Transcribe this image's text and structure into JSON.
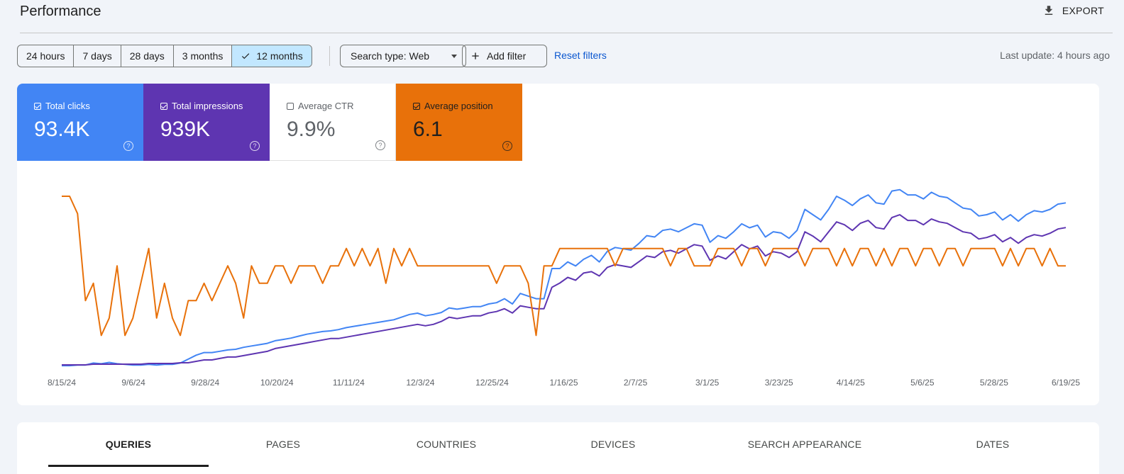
{
  "header": {
    "title": "Performance",
    "export_label": "EXPORT"
  },
  "toolbar": {
    "ranges": [
      "24 hours",
      "7 days",
      "28 days",
      "3 months",
      "12 months"
    ],
    "selected_range": "12 months",
    "search_type": "Search type: Web",
    "add_filter": "Add filter",
    "reset_filters": "Reset filters",
    "last_update": "Last update: 4 hours ago"
  },
  "metrics": {
    "clicks": {
      "label": "Total clicks",
      "value": "93.4K",
      "checked": true,
      "color": "#4285f4"
    },
    "impressions": {
      "label": "Total impressions",
      "value": "939K",
      "checked": true,
      "color": "#5e35b1"
    },
    "ctr": {
      "label": "Average CTR",
      "value": "9.9%",
      "checked": false
    },
    "position": {
      "label": "Average position",
      "value": "6.1",
      "checked": true,
      "color": "#e8710a"
    },
    "help_glyph": "?"
  },
  "chart_data": {
    "type": "line",
    "x_tick_labels": [
      "8/15/24",
      "9/6/24",
      "9/28/24",
      "10/20/24",
      "11/11/24",
      "12/3/24",
      "12/25/24",
      "1/16/25",
      "2/7/25",
      "3/1/25",
      "3/23/25",
      "4/14/25",
      "5/6/25",
      "5/28/25",
      "6/19/25"
    ],
    "x_range": [
      "8/15/24",
      "6/19/25"
    ],
    "series": [
      {
        "key": "clicks",
        "color": "#4285f4",
        "values": [
          2,
          2,
          3,
          3,
          6,
          5,
          7,
          5,
          4,
          3,
          3,
          4,
          3,
          4,
          4,
          6,
          12,
          18,
          22,
          22,
          24,
          26,
          27,
          30,
          32,
          34,
          36,
          40,
          42,
          44,
          47,
          50,
          52,
          54,
          55,
          57,
          60,
          62,
          64,
          66,
          68,
          70,
          72,
          76,
          80,
          82,
          78,
          80,
          83,
          90,
          88,
          90,
          92,
          92,
          96,
          98,
          104,
          96,
          112,
          108,
          104,
          104,
          150,
          150,
          160,
          154,
          164,
          170,
          160,
          176,
          182,
          180,
          178,
          188,
          200,
          198,
          208,
          210,
          206,
          212,
          218,
          216,
          190,
          200,
          196,
          206,
          218,
          212,
          216,
          198,
          206,
          204,
          196,
          208,
          240,
          232,
          224,
          240,
          260,
          254,
          246,
          256,
          262,
          250,
          248,
          268,
          270,
          262,
          262,
          256,
          266,
          260,
          258,
          250,
          242,
          240,
          230,
          232,
          236,
          224,
          232,
          222,
          232,
          238,
          236,
          240,
          248,
          250
        ]
      },
      {
        "key": "impressions",
        "color": "#5e35b1",
        "values": [
          3,
          3,
          3,
          3,
          4,
          4,
          4,
          4,
          4,
          4,
          4,
          5,
          5,
          5,
          5,
          6,
          6,
          8,
          10,
          10,
          12,
          14,
          14,
          16,
          18,
          20,
          22,
          26,
          28,
          30,
          32,
          34,
          36,
          38,
          40,
          40,
          42,
          44,
          46,
          48,
          50,
          52,
          54,
          56,
          58,
          60,
          58,
          60,
          64,
          70,
          68,
          70,
          72,
          72,
          76,
          78,
          82,
          76,
          86,
          84,
          82,
          82,
          112,
          118,
          126,
          122,
          132,
          134,
          128,
          140,
          144,
          142,
          140,
          148,
          156,
          154,
          162,
          164,
          160,
          166,
          172,
          170,
          150,
          156,
          152,
          162,
          172,
          166,
          170,
          156,
          162,
          160,
          154,
          162,
          190,
          184,
          176,
          190,
          204,
          200,
          192,
          202,
          206,
          196,
          194,
          210,
          214,
          206,
          206,
          200,
          208,
          204,
          202,
          196,
          190,
          188,
          180,
          182,
          186,
          176,
          182,
          174,
          182,
          186,
          184,
          188,
          194,
          196
        ]
      },
      {
        "key": "position",
        "color": "#e8710a",
        "values": [
          1,
          1,
          2,
          7,
          6,
          9,
          8,
          5,
          9,
          8,
          6,
          4,
          8,
          6,
          8,
          9,
          7,
          7,
          6,
          7,
          6,
          5,
          6,
          8,
          5,
          6,
          6,
          5,
          5,
          6,
          5,
          5,
          5,
          6,
          5,
          5,
          4,
          5,
          4,
          5,
          4,
          6,
          4,
          5,
          4,
          5,
          5,
          5,
          5,
          5,
          5,
          5,
          5,
          5,
          5,
          6,
          5,
          5,
          5,
          6,
          9,
          5,
          5,
          4,
          4,
          4,
          4,
          4,
          4,
          4,
          5,
          4,
          4,
          4,
          4,
          4,
          4,
          5,
          4,
          4,
          5,
          5,
          5,
          4,
          4,
          4,
          5,
          4,
          4,
          5,
          4,
          4,
          4,
          4,
          5,
          4,
          4,
          4,
          5,
          4,
          5,
          4,
          4,
          5,
          4,
          5,
          4,
          4,
          5,
          4,
          4,
          5,
          4,
          4,
          5,
          4,
          4,
          4,
          4,
          5,
          4,
          5,
          4,
          4,
          5,
          4,
          5,
          5
        ]
      }
    ]
  },
  "tabs": [
    "QUERIES",
    "PAGES",
    "COUNTRIES",
    "DEVICES",
    "SEARCH APPEARANCE",
    "DATES"
  ],
  "active_tab": "QUERIES"
}
